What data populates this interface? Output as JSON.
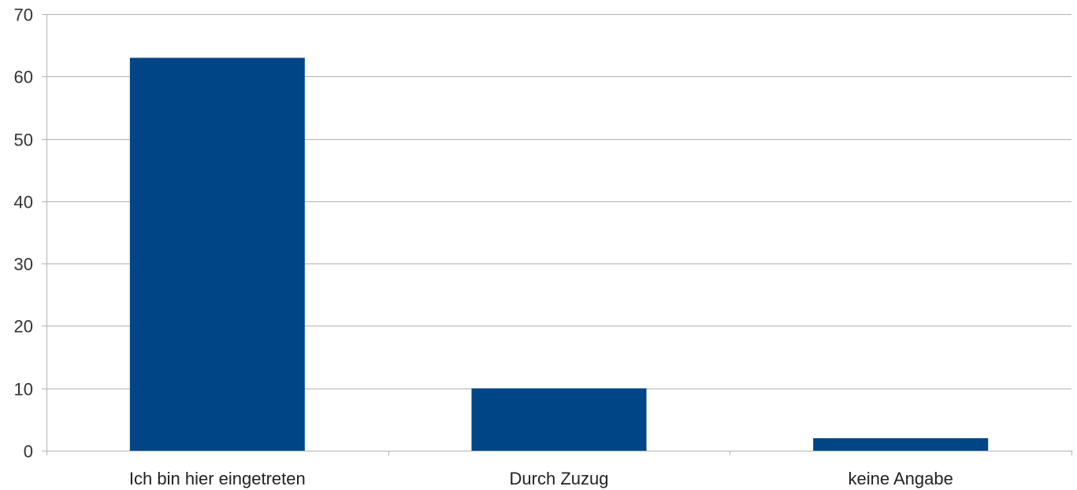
{
  "chart_data": {
    "type": "bar",
    "categories": [
      "Ich bin hier eingetreten",
      "Durch Zuzug",
      "keine Angabe"
    ],
    "values": [
      63,
      10,
      2
    ],
    "title": "",
    "xlabel": "",
    "ylabel": "",
    "ylim": [
      0,
      70
    ],
    "yticks": [
      0,
      10,
      20,
      30,
      40,
      50,
      60,
      70
    ],
    "ytick_labels": [
      "0",
      "10",
      "20",
      "30",
      "40",
      "50",
      "60",
      "70"
    ],
    "grid": true,
    "legend": "none",
    "colors": {
      "bar": "#004586",
      "grid": "#b3b3b3",
      "axis": "#b3b3b3"
    }
  }
}
